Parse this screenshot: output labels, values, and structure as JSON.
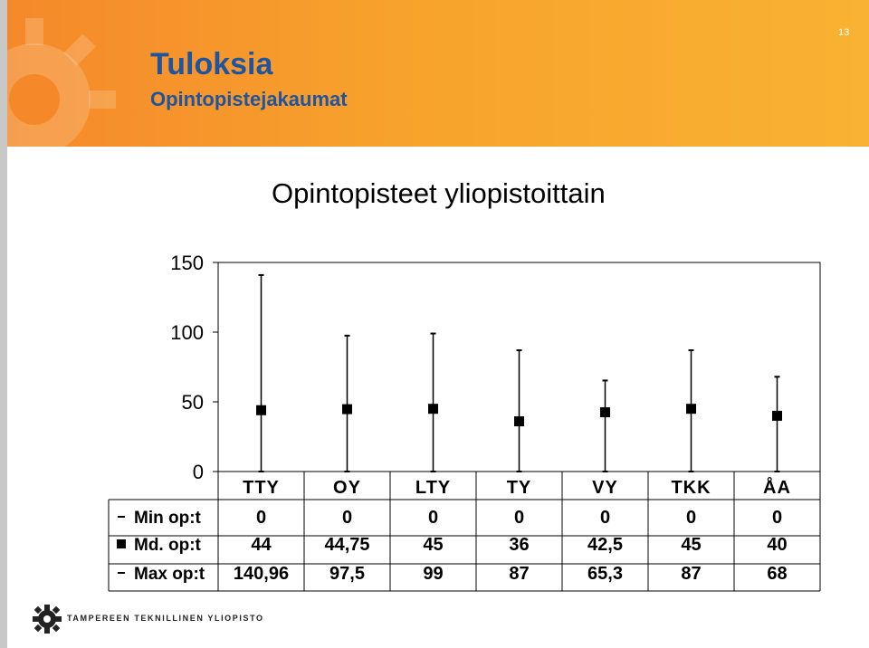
{
  "slide": {
    "title": "Tuloksia",
    "subtitle": "Opintopistejakaumat",
    "number": "13"
  },
  "colors": {
    "header_start": "#f5892a",
    "header_end": "#f9b233",
    "title_color": "#1f55a0"
  },
  "logo": {
    "text": "TAMPEREEN TEKNILLINEN YLIOPISTO",
    "icon": "tut-gear-logo-icon"
  },
  "chart_data": {
    "type": "line",
    "title": "Opintopisteet yliopistoittain",
    "categories": [
      "TTY",
      "OY",
      "LTY",
      "TY",
      "VY",
      "TKK",
      "ÅA"
    ],
    "ylim": [
      0,
      150
    ],
    "yticks": [
      "0",
      "50",
      "100",
      "150"
    ],
    "grid": false,
    "series": [
      {
        "name": "Min op:t",
        "marker": "dash",
        "values": [
          0,
          0,
          0,
          0,
          0,
          0,
          0
        ],
        "labels": [
          "0",
          "0",
          "0",
          "0",
          "0",
          "0",
          "0"
        ]
      },
      {
        "name": "Md. op:t",
        "marker": "square",
        "values": [
          44,
          44.75,
          45,
          36,
          42.5,
          45,
          40
        ],
        "labels": [
          "44",
          "44,75",
          "45",
          "36",
          "42,5",
          "45",
          "40"
        ]
      },
      {
        "name": "Max op:t",
        "marker": "dash",
        "values": [
          140.96,
          97.5,
          99,
          87,
          65.3,
          87,
          68
        ],
        "labels": [
          "140,96",
          "97,5",
          "99",
          "87",
          "65,3",
          "87",
          "68"
        ]
      }
    ]
  }
}
